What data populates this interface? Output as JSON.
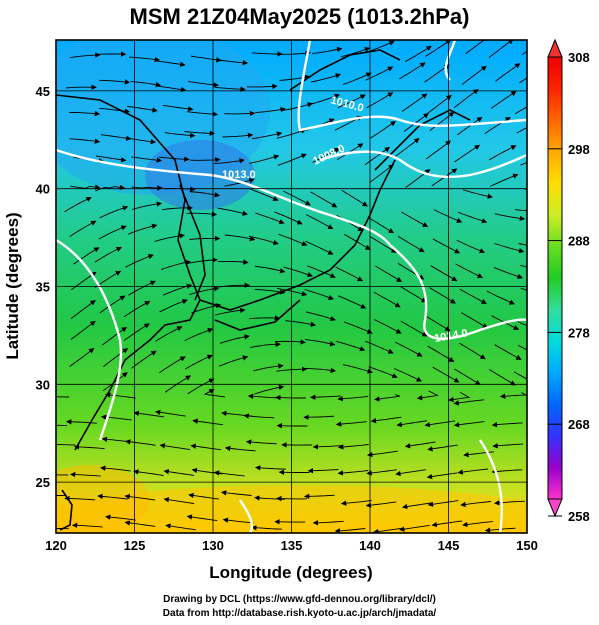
{
  "title": "MSM 21Z04May2025 (1013.2hPa)",
  "xaxis": {
    "label": "Longitude (degrees)",
    "range": [
      120,
      150
    ],
    "ticks": [
      "120",
      "125",
      "130",
      "135",
      "140",
      "145",
      "150"
    ]
  },
  "yaxis": {
    "label": "Latitude (degrees)",
    "range": [
      22.4,
      47.6
    ],
    "ticks": [
      "25",
      "30",
      "35",
      "40",
      "45"
    ]
  },
  "colorbar": {
    "unit_hint": "K",
    "min": 258,
    "max": 308,
    "ticks": [
      "258",
      "268",
      "278",
      "288",
      "298",
      "308"
    ],
    "colors": [
      "#ff33cc",
      "#9900cc",
      "#3333ff",
      "#0066ff",
      "#00aaff",
      "#00dddd",
      "#33dd99",
      "#22cc22",
      "#66dd22",
      "#ccee22",
      "#ffdd00",
      "#ffaa00",
      "#ff6600",
      "#ff2200",
      "#ee0000"
    ]
  },
  "isobars": [
    {
      "label": "1010.0"
    },
    {
      "label": "1008.0"
    },
    {
      "label": "1013.0"
    },
    {
      "label": "1014.0"
    }
  ],
  "credits": {
    "line1": "Drawing by DCL (https://www.gfd-dennou.org/library/dcl/)",
    "line2": "Data from http://database.rish.kyoto-u.ac.jp/arch/jmadata/"
  }
}
